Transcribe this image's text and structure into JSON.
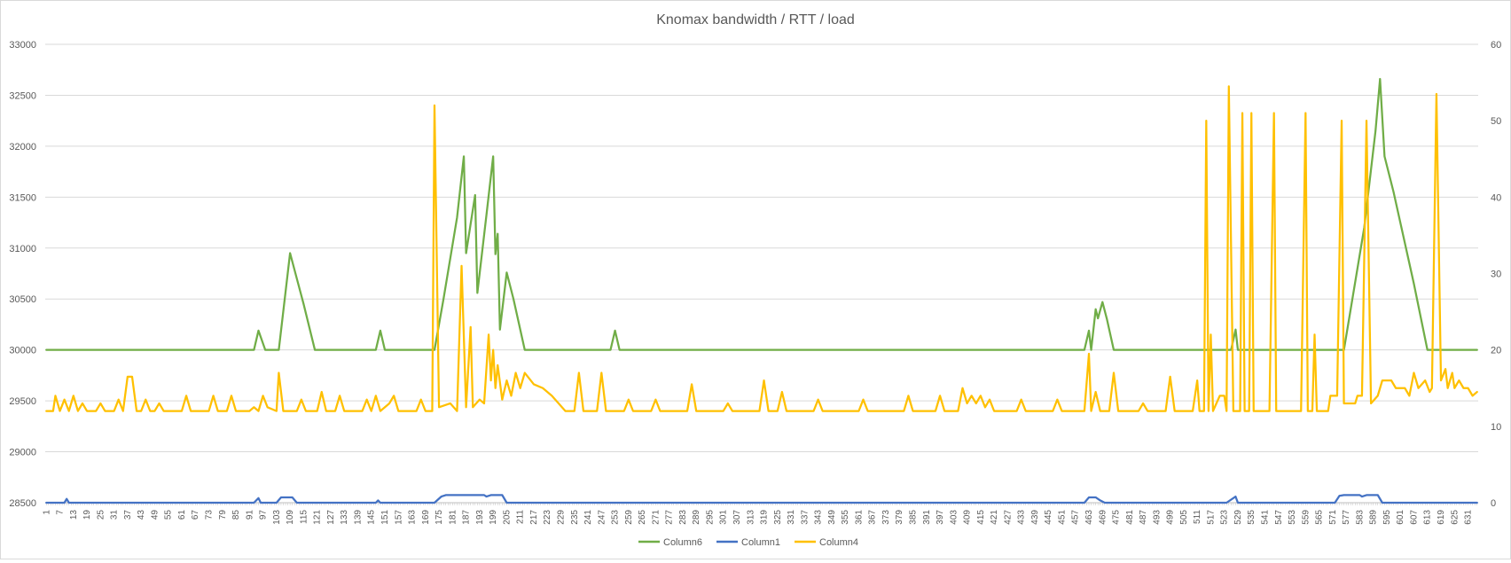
{
  "chart_data": {
    "type": "line",
    "title": "Knomax bandwidth / RTT / load",
    "x_start": 1,
    "x_end": 635,
    "x_tick_labels": [
      1,
      7,
      13,
      19,
      25,
      31,
      37,
      43,
      49,
      55,
      61,
      67,
      73,
      79,
      85,
      91,
      97,
      103,
      109,
      115,
      121,
      127,
      133,
      139,
      145,
      151,
      157,
      163,
      169,
      175,
      181,
      187,
      193,
      199,
      205,
      211,
      217,
      223,
      229,
      235,
      241,
      247,
      253,
      259,
      265,
      271,
      277,
      283,
      289,
      295,
      301,
      307,
      313,
      319,
      325,
      331,
      337,
      343,
      349,
      355,
      361,
      367,
      373,
      379,
      385,
      391,
      397,
      403,
      409,
      415,
      421,
      427,
      433,
      439,
      445,
      451,
      457,
      463,
      469,
      475,
      481,
      487,
      493,
      499,
      505,
      511,
      517,
      523,
      529,
      535,
      541,
      547,
      553,
      559,
      565,
      571,
      577,
      583,
      589,
      595,
      601,
      607,
      613,
      619,
      625,
      631
    ],
    "y_left": {
      "min": 28500,
      "max": 33000,
      "ticks": [
        28500,
        29000,
        29500,
        30000,
        30500,
        31000,
        31500,
        32000,
        32500,
        33000
      ]
    },
    "y_right": {
      "min": 0,
      "max": 60,
      "ticks": [
        0,
        10,
        20,
        30,
        40,
        50,
        60
      ]
    },
    "grid": true,
    "legend_position": "bottom",
    "series": [
      {
        "name": "Column6",
        "axis": "left",
        "color": "#70ad47",
        "points": [
          [
            1,
            30000
          ],
          [
            93,
            30000
          ],
          [
            95,
            30190
          ],
          [
            98,
            30000
          ],
          [
            104,
            30000
          ],
          [
            109,
            30950
          ],
          [
            112,
            30700
          ],
          [
            115,
            30450
          ],
          [
            120,
            30000
          ],
          [
            147,
            30000
          ],
          [
            149,
            30190
          ],
          [
            151,
            30000
          ],
          [
            173,
            30000
          ],
          [
            177,
            30500
          ],
          [
            183,
            31300
          ],
          [
            186,
            31900
          ],
          [
            187,
            30950
          ],
          [
            191,
            31520
          ],
          [
            192,
            30560
          ],
          [
            196,
            31320
          ],
          [
            199,
            31900
          ],
          [
            200,
            30940
          ],
          [
            201,
            31140
          ],
          [
            202,
            30200
          ],
          [
            205,
            30760
          ],
          [
            208,
            30500
          ],
          [
            213,
            30000
          ],
          [
            251,
            30000
          ],
          [
            253,
            30190
          ],
          [
            255,
            30000
          ],
          [
            461,
            30000
          ],
          [
            463,
            30190
          ],
          [
            464,
            30000
          ],
          [
            466,
            30400
          ],
          [
            467,
            30310
          ],
          [
            469,
            30470
          ],
          [
            471,
            30300
          ],
          [
            474,
            30000
          ],
          [
            526,
            30000
          ],
          [
            528,
            30200
          ],
          [
            529,
            30000
          ],
          [
            576,
            30000
          ],
          [
            585,
            31200
          ],
          [
            590,
            32150
          ],
          [
            592,
            32660
          ],
          [
            594,
            31900
          ],
          [
            598,
            31550
          ],
          [
            607,
            30650
          ],
          [
            613,
            30000
          ],
          [
            635,
            30000
          ]
        ]
      },
      {
        "name": "Column1",
        "axis": "right",
        "color": "#4472c4",
        "points": [
          [
            1,
            0
          ],
          [
            9,
            0
          ],
          [
            10,
            0.5
          ],
          [
            11,
            0
          ],
          [
            93,
            0
          ],
          [
            95,
            0.6
          ],
          [
            96,
            0
          ],
          [
            103,
            0
          ],
          [
            105,
            0.7
          ],
          [
            110,
            0.7
          ],
          [
            112,
            0
          ],
          [
            147,
            0
          ],
          [
            148,
            0.3
          ],
          [
            149,
            0
          ],
          [
            173,
            0
          ],
          [
            176,
            0.8
          ],
          [
            178,
            1
          ],
          [
            195,
            1
          ],
          [
            196,
            0.8
          ],
          [
            198,
            1
          ],
          [
            203,
            1
          ],
          [
            205,
            0
          ],
          [
            461,
            0
          ],
          [
            463,
            0.7
          ],
          [
            466,
            0.7
          ],
          [
            468,
            0.3
          ],
          [
            470,
            0
          ],
          [
            524,
            0
          ],
          [
            528,
            0.8
          ],
          [
            529,
            0
          ],
          [
            572,
            0
          ],
          [
            574,
            0.9
          ],
          [
            576,
            1
          ],
          [
            583,
            1
          ],
          [
            584,
            0.8
          ],
          [
            586,
            1
          ],
          [
            591,
            1
          ],
          [
            593,
            0
          ],
          [
            635,
            0
          ]
        ]
      },
      {
        "name": "Column4",
        "axis": "right",
        "color": "#ffc000",
        "points": [
          [
            1,
            12
          ],
          [
            4,
            12
          ],
          [
            5,
            14
          ],
          [
            7,
            12
          ],
          [
            9,
            13.5
          ],
          [
            11,
            12
          ],
          [
            13,
            14
          ],
          [
            15,
            12
          ],
          [
            17,
            13
          ],
          [
            19,
            12
          ],
          [
            23,
            12
          ],
          [
            25,
            13
          ],
          [
            27,
            12
          ],
          [
            31,
            12
          ],
          [
            33,
            13.5
          ],
          [
            35,
            12
          ],
          [
            37,
            16.5
          ],
          [
            39,
            16.5
          ],
          [
            41,
            12
          ],
          [
            43,
            12
          ],
          [
            45,
            13.5
          ],
          [
            47,
            12
          ],
          [
            49,
            12
          ],
          [
            51,
            13
          ],
          [
            53,
            12
          ],
          [
            61,
            12
          ],
          [
            63,
            14
          ],
          [
            65,
            12
          ],
          [
            73,
            12
          ],
          [
            75,
            14
          ],
          [
            77,
            12
          ],
          [
            81,
            12
          ],
          [
            83,
            14
          ],
          [
            85,
            12
          ],
          [
            91,
            12
          ],
          [
            93,
            12.5
          ],
          [
            95,
            12
          ],
          [
            97,
            14
          ],
          [
            99,
            12.5
          ],
          [
            103,
            12
          ],
          [
            104,
            17
          ],
          [
            106,
            12
          ],
          [
            112,
            12
          ],
          [
            114,
            13.5
          ],
          [
            116,
            12
          ],
          [
            121,
            12
          ],
          [
            123,
            14.5
          ],
          [
            125,
            12
          ],
          [
            129,
            12
          ],
          [
            131,
            14
          ],
          [
            133,
            12
          ],
          [
            141,
            12
          ],
          [
            143,
            13.5
          ],
          [
            145,
            12
          ],
          [
            147,
            14
          ],
          [
            149,
            12
          ],
          [
            153,
            13
          ],
          [
            155,
            14
          ],
          [
            157,
            12
          ],
          [
            165,
            12
          ],
          [
            167,
            13.5
          ],
          [
            169,
            12
          ],
          [
            172,
            12
          ],
          [
            173,
            52
          ],
          [
            175,
            12.5
          ],
          [
            180,
            13
          ],
          [
            183,
            12
          ],
          [
            185,
            31
          ],
          [
            187,
            12.5
          ],
          [
            189,
            23
          ],
          [
            190,
            12.5
          ],
          [
            193,
            13.5
          ],
          [
            195,
            13
          ],
          [
            197,
            22
          ],
          [
            198,
            16
          ],
          [
            199,
            20
          ],
          [
            200,
            15
          ],
          [
            201,
            18
          ],
          [
            203,
            13.5
          ],
          [
            205,
            16
          ],
          [
            207,
            14
          ],
          [
            209,
            17
          ],
          [
            211,
            15
          ],
          [
            213,
            17
          ],
          [
            217,
            15.5
          ],
          [
            221,
            15
          ],
          [
            225,
            14
          ],
          [
            231,
            12
          ],
          [
            235,
            12
          ],
          [
            237,
            17
          ],
          [
            239,
            12
          ],
          [
            245,
            12
          ],
          [
            247,
            17
          ],
          [
            249,
            12
          ],
          [
            257,
            12
          ],
          [
            259,
            13.5
          ],
          [
            261,
            12
          ],
          [
            269,
            12
          ],
          [
            271,
            13.5
          ],
          [
            273,
            12
          ],
          [
            285,
            12
          ],
          [
            287,
            15.5
          ],
          [
            289,
            12
          ],
          [
            301,
            12
          ],
          [
            303,
            13
          ],
          [
            305,
            12
          ],
          [
            317,
            12
          ],
          [
            319,
            16
          ],
          [
            321,
            12
          ],
          [
            325,
            12
          ],
          [
            327,
            14.5
          ],
          [
            329,
            12
          ],
          [
            341,
            12
          ],
          [
            343,
            13.5
          ],
          [
            345,
            12
          ],
          [
            361,
            12
          ],
          [
            363,
            13.5
          ],
          [
            365,
            12
          ],
          [
            381,
            12
          ],
          [
            383,
            14
          ],
          [
            385,
            12
          ],
          [
            395,
            12
          ],
          [
            397,
            14
          ],
          [
            399,
            12
          ],
          [
            405,
            12
          ],
          [
            407,
            15
          ],
          [
            409,
            13
          ],
          [
            411,
            14
          ],
          [
            413,
            13
          ],
          [
            415,
            14
          ],
          [
            417,
            12.5
          ],
          [
            419,
            13.5
          ],
          [
            421,
            12
          ],
          [
            431,
            12
          ],
          [
            433,
            13.5
          ],
          [
            435,
            12
          ],
          [
            447,
            12
          ],
          [
            449,
            13.5
          ],
          [
            451,
            12
          ],
          [
            461,
            12
          ],
          [
            463,
            19.5
          ],
          [
            464,
            12
          ],
          [
            466,
            14.5
          ],
          [
            468,
            12
          ],
          [
            472,
            12
          ],
          [
            474,
            17
          ],
          [
            476,
            12
          ],
          [
            485,
            12
          ],
          [
            487,
            13
          ],
          [
            489,
            12
          ],
          [
            497,
            12
          ],
          [
            499,
            16.5
          ],
          [
            501,
            12
          ],
          [
            509,
            12
          ],
          [
            511,
            16
          ],
          [
            512,
            12
          ],
          [
            514,
            12
          ],
          [
            515,
            50
          ],
          [
            516,
            12
          ],
          [
            517,
            22
          ],
          [
            518,
            12
          ],
          [
            521,
            14
          ],
          [
            523,
            14
          ],
          [
            524,
            12
          ],
          [
            525,
            54.5
          ],
          [
            527,
            12
          ],
          [
            530,
            12
          ],
          [
            531,
            51
          ],
          [
            532,
            12
          ],
          [
            534,
            12
          ],
          [
            535,
            51
          ],
          [
            536,
            12
          ],
          [
            543,
            12
          ],
          [
            545,
            51
          ],
          [
            546,
            12
          ],
          [
            557,
            12
          ],
          [
            559,
            51
          ],
          [
            560,
            12
          ],
          [
            562,
            12
          ],
          [
            563,
            22
          ],
          [
            564,
            12
          ],
          [
            569,
            12
          ],
          [
            570,
            14
          ],
          [
            573,
            14
          ],
          [
            575,
            50
          ],
          [
            576,
            13
          ],
          [
            581,
            13
          ],
          [
            582,
            14
          ],
          [
            584,
            14
          ],
          [
            586,
            50
          ],
          [
            588,
            13
          ],
          [
            591,
            14
          ],
          [
            593,
            16
          ],
          [
            597,
            16
          ],
          [
            599,
            15
          ],
          [
            603,
            15
          ],
          [
            605,
            14
          ],
          [
            607,
            17
          ],
          [
            609,
            15
          ],
          [
            612,
            16
          ],
          [
            614,
            14.5
          ],
          [
            615,
            15
          ],
          [
            617,
            53.5
          ],
          [
            619,
            16
          ],
          [
            621,
            17.5
          ],
          [
            622,
            15
          ],
          [
            624,
            17
          ],
          [
            625,
            15
          ],
          [
            627,
            16
          ],
          [
            629,
            15
          ],
          [
            631,
            15
          ],
          [
            633,
            14
          ],
          [
            635,
            14.5
          ]
        ]
      }
    ]
  }
}
